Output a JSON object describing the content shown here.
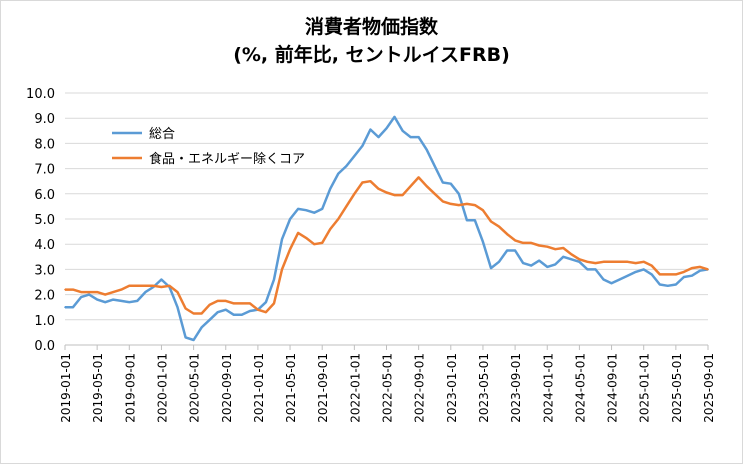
{
  "chart_data": {
    "type": "line",
    "title": "消費者物価指数",
    "subtitle": "(%, 前年比, セントルイスFRB)",
    "xlabel": "",
    "ylabel": "",
    "ylim": [
      0,
      10
    ],
    "yticks": [
      "0.0",
      "1.0",
      "2.0",
      "3.0",
      "4.0",
      "5.0",
      "6.0",
      "7.0",
      "8.0",
      "9.0",
      "10.0"
    ],
    "grid": true,
    "legend": "top-left",
    "x_start": "2019-01",
    "xtick_labels": [
      "2019-01-01",
      "2019-05-01",
      "2019-09-01",
      "2020-01-01",
      "2020-05-01",
      "2020-09-01",
      "2021-01-01",
      "2021-05-01",
      "2021-09-01",
      "2022-01-01",
      "2022-05-01",
      "2022-09-01",
      "2023-01-01",
      "2023-05-01",
      "2023-09-01",
      "2024-01-01",
      "2024-05-01",
      "2024-09-01",
      "2025-01-01",
      "2025-05-01",
      "2025-09-01"
    ],
    "series": [
      {
        "name": "総合",
        "color": "#5b9bd5",
        "values": [
          1.5,
          1.5,
          1.9,
          2.0,
          1.8,
          1.7,
          1.8,
          1.75,
          1.7,
          1.75,
          2.1,
          2.3,
          2.6,
          2.3,
          1.5,
          0.3,
          0.2,
          0.7,
          1.0,
          1.3,
          1.4,
          1.2,
          1.2,
          1.35,
          1.4,
          1.7,
          2.6,
          4.2,
          5.0,
          5.4,
          5.35,
          5.25,
          5.4,
          6.2,
          6.8,
          7.1,
          7.5,
          7.9,
          8.55,
          8.25,
          8.6,
          9.05,
          8.5,
          8.25,
          8.25,
          7.75,
          7.1,
          6.45,
          6.4,
          6.0,
          4.95,
          4.95,
          4.1,
          3.05,
          3.3,
          3.75,
          3.75,
          3.25,
          3.15,
          3.35,
          3.1,
          3.2,
          3.5,
          3.4,
          3.3,
          3.0,
          3.0,
          2.6,
          2.45,
          2.6,
          2.75,
          2.9,
          3.0,
          2.8,
          2.4,
          2.35,
          2.4,
          2.7,
          2.75,
          2.95,
          3.0
        ]
      },
      {
        "name": "食品・エネルギー除くコア",
        "color": "#ed7d31",
        "values": [
          2.2,
          2.2,
          2.1,
          2.1,
          2.1,
          2.0,
          2.1,
          2.2,
          2.35,
          2.35,
          2.35,
          2.35,
          2.3,
          2.35,
          2.1,
          1.45,
          1.25,
          1.25,
          1.6,
          1.75,
          1.75,
          1.65,
          1.65,
          1.65,
          1.4,
          1.3,
          1.65,
          3.0,
          3.8,
          4.45,
          4.25,
          4.0,
          4.05,
          4.6,
          5.0,
          5.5,
          6.0,
          6.45,
          6.5,
          6.2,
          6.05,
          5.95,
          5.95,
          6.3,
          6.65,
          6.3,
          6.0,
          5.7,
          5.6,
          5.55,
          5.6,
          5.55,
          5.35,
          4.9,
          4.7,
          4.4,
          4.15,
          4.05,
          4.05,
          3.95,
          3.9,
          3.8,
          3.85,
          3.6,
          3.4,
          3.3,
          3.25,
          3.3,
          3.3,
          3.3,
          3.3,
          3.25,
          3.3,
          3.15,
          2.8,
          2.8,
          2.8,
          2.9,
          3.05,
          3.1,
          3.0
        ]
      }
    ]
  }
}
